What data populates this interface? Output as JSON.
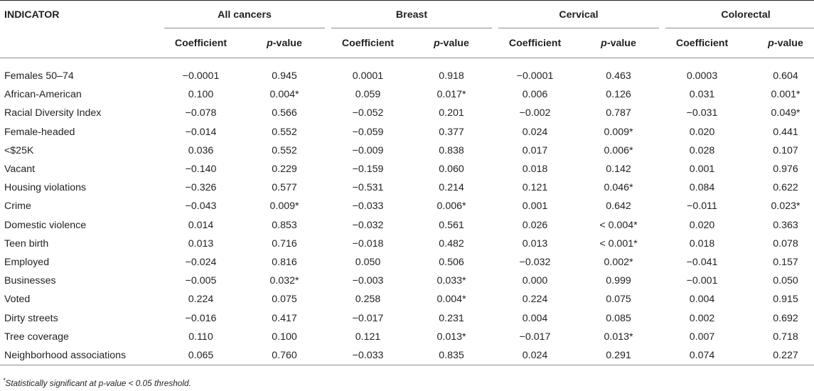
{
  "table": {
    "indicator_header": "INDICATOR",
    "groups": [
      "All cancers",
      "Breast",
      "Cervical",
      "Colorectal"
    ],
    "coef_label": "Coefficient",
    "pval_p": "p",
    "pval_rest": "-value",
    "rows": [
      {
        "indicator": "Females 50–74",
        "values": [
          "−0.0001",
          "0.945",
          "0.0001",
          "0.918",
          "−0.0001",
          "0.463",
          "0.0003",
          "0.604"
        ]
      },
      {
        "indicator": "African-American",
        "values": [
          "0.100",
          "0.004*",
          "0.059",
          "0.017*",
          "0.006",
          "0.126",
          "0.031",
          "0.001*"
        ]
      },
      {
        "indicator": "Racial Diversity Index",
        "values": [
          "−0.078",
          "0.566",
          "−0.052",
          "0.201",
          "−0.002",
          "0.787",
          "−0.031",
          "0.049*"
        ]
      },
      {
        "indicator": "Female-headed",
        "values": [
          "−0.014",
          "0.552",
          "−0.059",
          "0.377",
          "0.024",
          "0.009*",
          "0.020",
          "0.441"
        ]
      },
      {
        "indicator": "<$25K",
        "values": [
          "0.036",
          "0.552",
          "−0.009",
          "0.838",
          "0.017",
          "0.006*",
          "0.028",
          "0.107"
        ]
      },
      {
        "indicator": "Vacant",
        "values": [
          "−0.140",
          "0.229",
          "−0.159",
          "0.060",
          "0.018",
          "0.142",
          "0.001",
          "0.976"
        ]
      },
      {
        "indicator": "Housing violations",
        "values": [
          "−0.326",
          "0.577",
          "−0.531",
          "0.214",
          "0.121",
          "0.046*",
          "0.084",
          "0.622"
        ]
      },
      {
        "indicator": "Crime",
        "values": [
          "−0.043",
          "0.009*",
          "−0.033",
          "0.006*",
          "0.001",
          "0.642",
          "−0.011",
          "0.023*"
        ]
      },
      {
        "indicator": "Domestic violence",
        "values": [
          "0.014",
          "0.853",
          "−0.032",
          "0.561",
          "0.026",
          "< 0.004*",
          "0.020",
          "0.363"
        ]
      },
      {
        "indicator": "Teen birth",
        "values": [
          "0.013",
          "0.716",
          "−0.018",
          "0.482",
          "0.013",
          "< 0.001*",
          "0.018",
          "0.078"
        ]
      },
      {
        "indicator": "Employed",
        "values": [
          "−0.024",
          "0.816",
          "0.050",
          "0.506",
          "−0.032",
          "0.002*",
          "−0.041",
          "0.157"
        ]
      },
      {
        "indicator": "Businesses",
        "values": [
          "−0.005",
          "0.032*",
          "−0.003",
          "0.033*",
          "0.000",
          "0.999",
          "−0.001",
          "0.050"
        ]
      },
      {
        "indicator": "Voted",
        "values": [
          "0.224",
          "0.075",
          "0.258",
          "0.004*",
          "0.224",
          "0.075",
          "0.004",
          "0.915"
        ]
      },
      {
        "indicator": "Dirty streets",
        "values": [
          "−0.016",
          "0.417",
          "−0.017",
          "0.231",
          "0.004",
          "0.085",
          "0.002",
          "0.692"
        ]
      },
      {
        "indicator": "Tree coverage",
        "values": [
          "0.110",
          "0.100",
          "0.121",
          "0.013*",
          "−0.017",
          "0.013*",
          "0.007",
          "0.718"
        ]
      },
      {
        "indicator": "Neighborhood associations",
        "values": [
          "0.065",
          "0.760",
          "−0.033",
          "0.835",
          "0.024",
          "0.291",
          "0.074",
          "0.227"
        ]
      }
    ]
  },
  "footnote": {
    "mark": "*",
    "text": "Statistically significant at p-value < 0.05 threshold."
  }
}
